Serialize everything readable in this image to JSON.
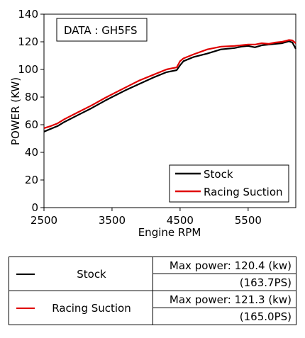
{
  "chart_data": {
    "type": "line",
    "title": "DATA : GH5FS",
    "xlabel": "Engine RPM",
    "ylabel": "POWER (KW)",
    "xlim": [
      2500,
      6200
    ],
    "ylim": [
      0,
      140
    ],
    "xticks": [
      2500,
      3500,
      4500,
      5500
    ],
    "yticks": [
      0,
      20,
      40,
      60,
      80,
      100,
      120,
      140
    ],
    "grid": false,
    "legend_position": "bottom-right",
    "series": [
      {
        "name": "Stock",
        "color": "#000000",
        "x": [
          2500,
          2600,
          2700,
          2800,
          3000,
          3200,
          3400,
          3500,
          3700,
          3900,
          4100,
          4300,
          4350,
          4450,
          4500,
          4550,
          4700,
          4900,
          5100,
          5300,
          5400,
          5500,
          5600,
          5700,
          5800,
          5900,
          6000,
          6100,
          6150,
          6200
        ],
        "values": [
          55,
          57,
          59,
          62,
          67,
          72,
          77.5,
          80,
          85,
          89.5,
          94,
          98,
          98.5,
          99.5,
          103,
          106,
          109,
          111.5,
          114.5,
          115.5,
          116.5,
          117,
          116,
          117.5,
          118,
          118.5,
          119,
          120.4,
          119.5,
          115
        ]
      },
      {
        "name": "Racing Suction",
        "color": "#e00000",
        "x": [
          2500,
          2600,
          2700,
          2800,
          3000,
          3200,
          3400,
          3500,
          3700,
          3900,
          4100,
          4300,
          4350,
          4450,
          4500,
          4550,
          4700,
          4900,
          5100,
          5300,
          5400,
          5500,
          5600,
          5700,
          5800,
          5900,
          6000,
          6100,
          6150,
          6200
        ],
        "values": [
          57.5,
          59,
          61,
          64,
          69,
          74,
          79.5,
          82,
          87,
          92,
          96,
          100,
          100.5,
          101.5,
          106,
          108,
          111,
          114.5,
          116.5,
          117,
          117.5,
          118,
          118,
          119,
          118.5,
          119.5,
          120,
          121.3,
          121,
          119
        ]
      }
    ]
  },
  "table": {
    "rows": [
      {
        "name": "Stock",
        "max_power_kw": "Max power: 120.4 (kw)",
        "max_power_ps": "(163.7PS)",
        "color": "#000000"
      },
      {
        "name": "Racing Suction",
        "max_power_kw": "Max power: 121.3 (kw)",
        "max_power_ps": "(165.0PS)",
        "color": "#e00000"
      }
    ]
  }
}
